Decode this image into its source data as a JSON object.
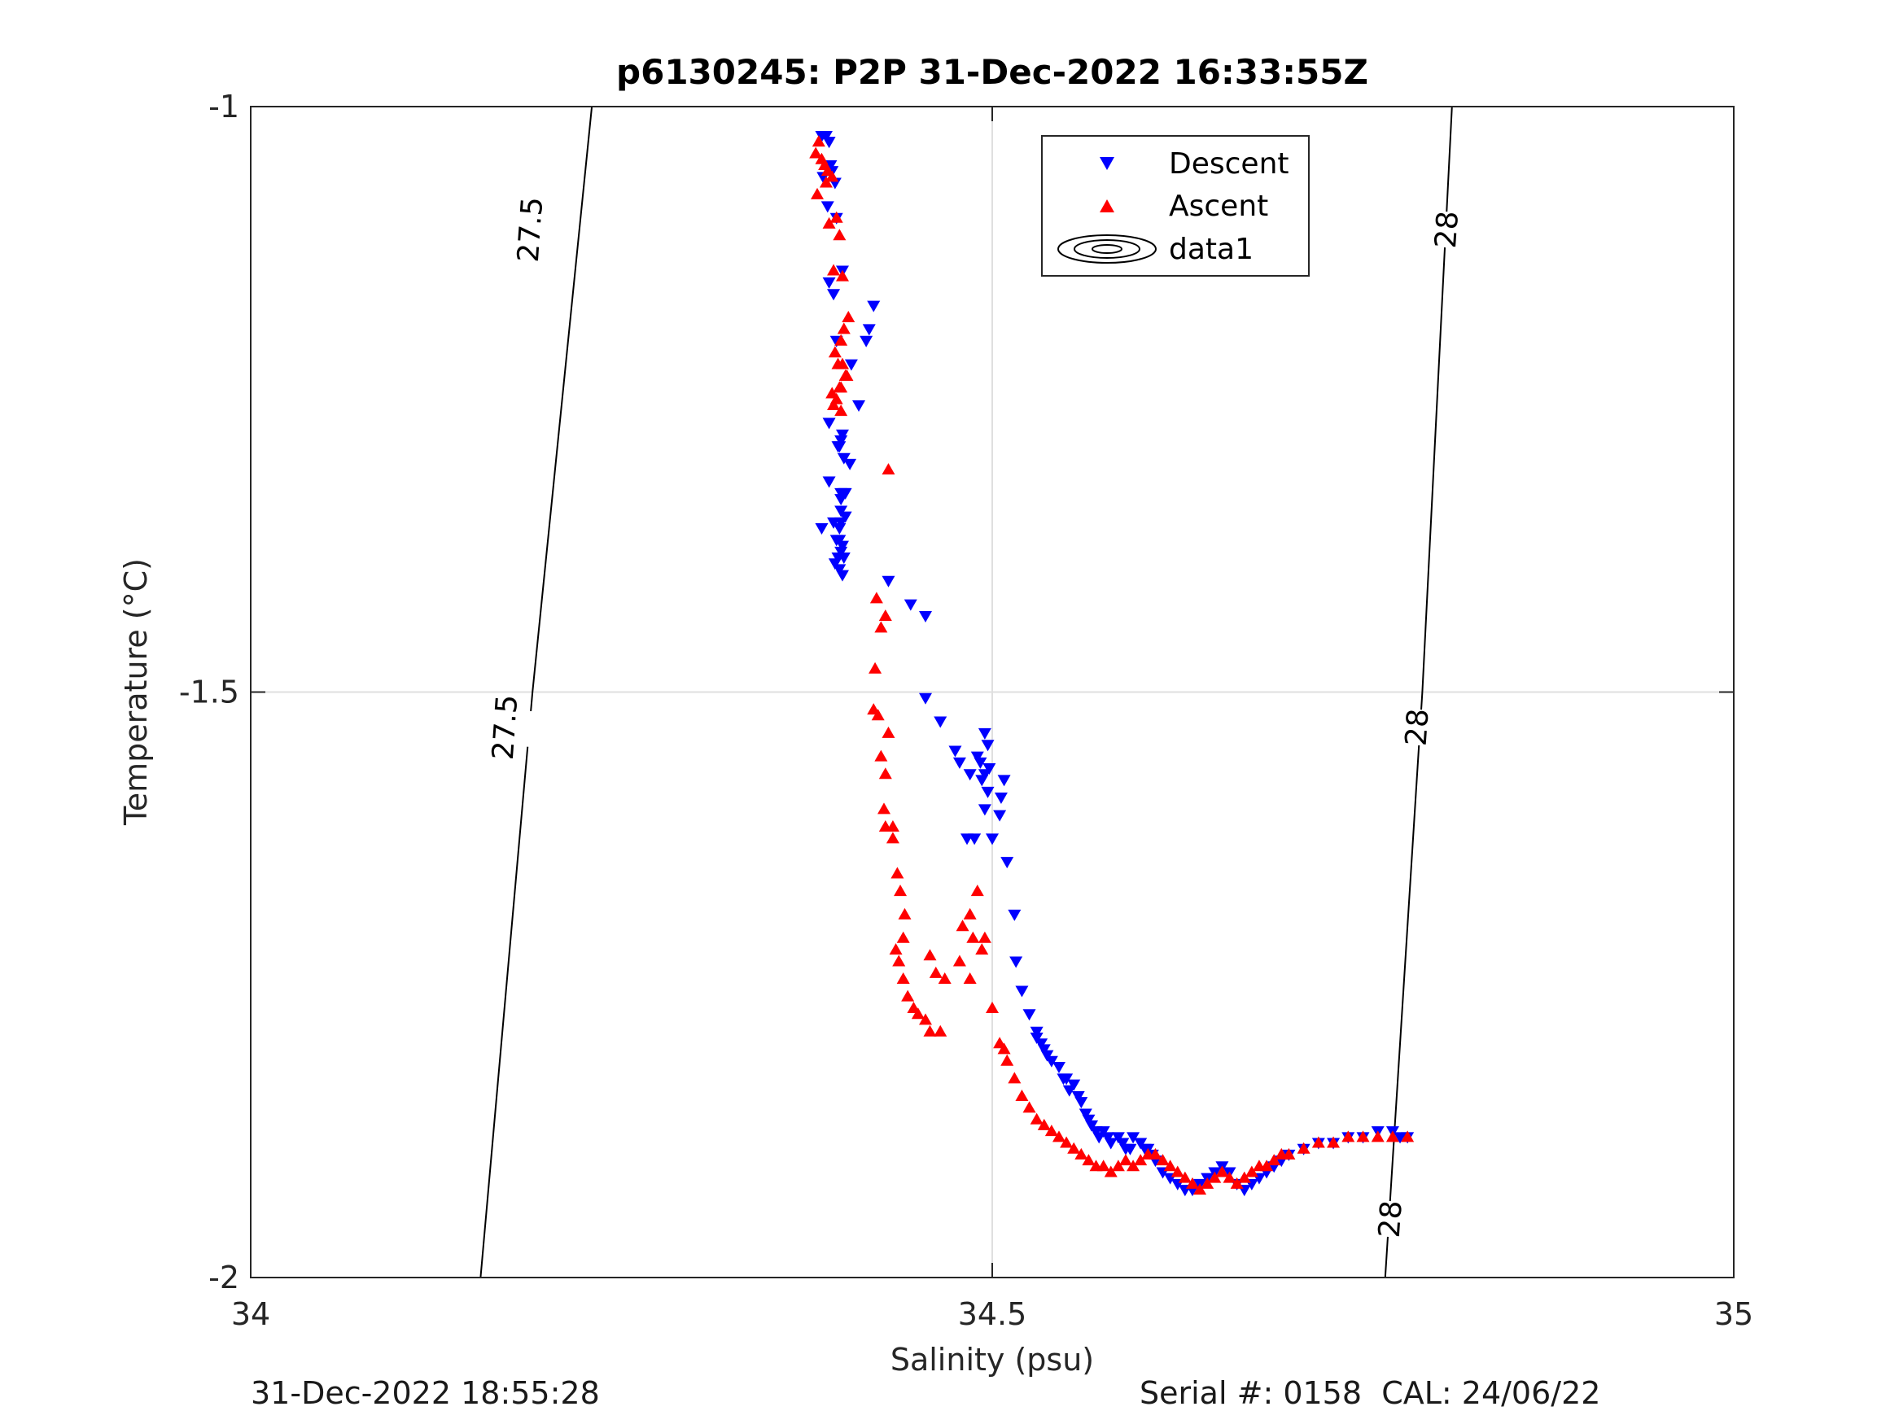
{
  "chart_data": {
    "type": "scatter",
    "title": "p6130245: P2P 31-Dec-2022 16:33:55Z",
    "xlabel": "Salinity (psu)",
    "ylabel": "Temperature (°C)",
    "xlim": [
      34,
      35
    ],
    "ylim": [
      -2,
      -1
    ],
    "x_ticks": [
      "34",
      "34.5",
      "35"
    ],
    "y_ticks": [
      "-1",
      "-1.5",
      "-2"
    ],
    "grid": true,
    "legend_position": "top-center",
    "legend": [
      "Descent",
      "Ascent",
      "data1"
    ],
    "isopycnals": [
      {
        "label": "27.5",
        "points": [
          [
            34.155,
            -2.0
          ],
          [
            34.19,
            -1.5
          ],
          [
            34.19,
            -1.5
          ],
          [
            34.23,
            -1.0
          ]
        ]
      },
      {
        "label": "28",
        "points": [
          [
            34.765,
            -2.0
          ],
          [
            34.79,
            -1.5
          ],
          [
            34.79,
            -1.5
          ],
          [
            34.81,
            -1.0
          ]
        ]
      }
    ],
    "isopycnal_label_points": [
      {
        "label": "27.5",
        "x": 34.188,
        "y": -1.105
      },
      {
        "label": "27.5",
        "x": 34.171,
        "y": -1.53
      },
      {
        "label": "28",
        "x": 34.806,
        "y": -1.105
      },
      {
        "label": "28",
        "x": 34.786,
        "y": -1.53
      },
      {
        "label": "28",
        "x": 34.768,
        "y": -1.95
      }
    ],
    "series": [
      {
        "name": "Descent",
        "marker": "triangle-down",
        "color": "#0000ff",
        "x": [
          34.385,
          34.388,
          34.39,
          34.391,
          34.386,
          34.392,
          34.394,
          34.389,
          34.395,
          34.39,
          34.393,
          34.399,
          34.42,
          34.417,
          34.415,
          34.395,
          34.405,
          34.41,
          34.39,
          34.404,
          34.398,
          34.4,
          34.385,
          34.393,
          34.398,
          34.401,
          34.397,
          34.397,
          34.399,
          34.398,
          34.396,
          34.4,
          34.397,
          34.399,
          34.39,
          34.395,
          34.398,
          34.396,
          34.398,
          34.398,
          34.4,
          34.394,
          34.397,
          34.399,
          34.401,
          34.43,
          34.445,
          34.455,
          34.455,
          34.465,
          34.475,
          34.478,
          34.485,
          34.493,
          34.49,
          34.495,
          34.497,
          34.495,
          34.492,
          34.497,
          34.498,
          34.495,
          34.488,
          34.483,
          34.5,
          34.505,
          34.506,
          34.508,
          34.51,
          34.515,
          34.516,
          34.52,
          34.525,
          34.53,
          34.53,
          34.533,
          34.535,
          34.537,
          34.54,
          34.545,
          34.548,
          34.55,
          34.552,
          34.555,
          34.558,
          34.56,
          34.563,
          34.565,
          34.567,
          34.57,
          34.572,
          34.575,
          34.578,
          34.58,
          34.585,
          34.588,
          34.59,
          34.593,
          34.595,
          34.6,
          34.603,
          34.605,
          34.608,
          34.61,
          34.615,
          34.62,
          34.625,
          34.63,
          34.635,
          34.64,
          34.645,
          34.65,
          34.655,
          34.66,
          34.665,
          34.67,
          34.675,
          34.68,
          34.685,
          34.69,
          34.695,
          34.7,
          34.71,
          34.72,
          34.73,
          34.74,
          34.75,
          34.76,
          34.77,
          34.775,
          34.78
        ],
        "y": [
          -1.025,
          -1.025,
          -1.03,
          -1.05,
          -1.06,
          -1.055,
          -1.065,
          -1.085,
          -1.095,
          -1.15,
          -1.16,
          -1.14,
          -1.17,
          -1.19,
          -1.2,
          -1.2,
          -1.22,
          -1.255,
          -1.32,
          -1.305,
          -1.285,
          -1.33,
          -1.36,
          -1.355,
          -1.345,
          -1.35,
          -1.36,
          -1.37,
          -1.375,
          -1.38,
          -1.385,
          -1.3,
          -1.29,
          -1.28,
          -1.27,
          -1.37,
          -1.335,
          -1.29,
          -1.33,
          -1.355,
          -1.385,
          -1.39,
          -1.395,
          -1.4,
          -1.33,
          -1.405,
          -1.425,
          -1.435,
          -1.505,
          -1.525,
          -1.55,
          -1.56,
          -1.57,
          -1.575,
          -1.555,
          -1.57,
          -1.585,
          -1.535,
          -1.56,
          -1.545,
          -1.565,
          -1.6,
          -1.625,
          -1.625,
          -1.625,
          -1.605,
          -1.59,
          -1.575,
          -1.645,
          -1.69,
          -1.73,
          -1.755,
          -1.775,
          -1.79,
          -1.795,
          -1.8,
          -1.805,
          -1.81,
          -1.815,
          -1.82,
          -1.83,
          -1.83,
          -1.84,
          -1.835,
          -1.845,
          -1.85,
          -1.86,
          -1.865,
          -1.87,
          -1.875,
          -1.88,
          -1.875,
          -1.88,
          -1.885,
          -1.88,
          -1.885,
          -1.89,
          -1.89,
          -1.88,
          -1.885,
          -1.89,
          -1.89,
          -1.895,
          -1.9,
          -1.91,
          -1.915,
          -1.92,
          -1.925,
          -1.925,
          -1.92,
          -1.915,
          -1.91,
          -1.905,
          -1.91,
          -1.92,
          -1.925,
          -1.92,
          -1.915,
          -1.91,
          -1.905,
          -1.9,
          -1.895,
          -1.89,
          -1.885,
          -1.885,
          -1.88,
          -1.88,
          -1.875,
          -1.875,
          -1.88,
          -1.88
        ]
      },
      {
        "name": "Ascent",
        "marker": "triangle-up",
        "color": "#ff0000",
        "x": [
          34.383,
          34.381,
          34.385,
          34.387,
          34.389,
          34.392,
          34.388,
          34.382,
          34.39,
          34.395,
          34.397,
          34.393,
          34.399,
          34.403,
          34.4,
          34.398,
          34.394,
          34.396,
          34.401,
          34.392,
          34.397,
          34.399,
          34.402,
          34.398,
          34.395,
          34.393,
          34.398,
          34.43,
          34.428,
          34.422,
          34.425,
          34.421,
          34.42,
          34.423,
          34.43,
          34.425,
          34.428,
          34.427,
          34.433,
          34.428,
          34.433,
          34.436,
          34.438,
          34.441,
          34.44,
          34.435,
          34.437,
          34.44,
          34.443,
          34.447,
          34.45,
          34.455,
          34.458,
          34.465,
          34.458,
          34.462,
          34.468,
          34.478,
          34.48,
          34.485,
          34.49,
          34.487,
          34.485,
          34.493,
          34.495,
          34.5,
          34.505,
          34.508,
          34.51,
          34.515,
          34.52,
          34.525,
          34.53,
          34.535,
          34.54,
          34.545,
          34.55,
          34.555,
          34.56,
          34.565,
          34.57,
          34.575,
          34.58,
          34.585,
          34.59,
          34.595,
          34.6,
          34.605,
          34.61,
          34.615,
          34.62,
          34.625,
          34.63,
          34.635,
          34.64,
          34.645,
          34.65,
          34.655,
          34.66,
          34.665,
          34.67,
          34.675,
          34.68,
          34.685,
          34.69,
          34.695,
          34.7,
          34.71,
          34.72,
          34.73,
          34.74,
          34.75,
          34.76,
          34.77,
          34.78
        ],
        "y": [
          -1.03,
          -1.04,
          -1.045,
          -1.05,
          -1.055,
          -1.06,
          -1.065,
          -1.075,
          -1.1,
          -1.095,
          -1.11,
          -1.14,
          -1.145,
          -1.18,
          -1.19,
          -1.2,
          -1.21,
          -1.22,
          -1.23,
          -1.245,
          -1.24,
          -1.22,
          -1.23,
          -1.24,
          -1.25,
          -1.255,
          -1.26,
          -1.31,
          -1.435,
          -1.42,
          -1.445,
          -1.48,
          -1.515,
          -1.52,
          -1.535,
          -1.555,
          -1.57,
          -1.6,
          -1.615,
          -1.615,
          -1.625,
          -1.655,
          -1.67,
          -1.69,
          -1.71,
          -1.72,
          -1.73,
          -1.745,
          -1.76,
          -1.77,
          -1.775,
          -1.78,
          -1.79,
          -1.79,
          -1.725,
          -1.74,
          -1.745,
          -1.73,
          -1.7,
          -1.69,
          -1.67,
          -1.71,
          -1.745,
          -1.72,
          -1.71,
          -1.77,
          -1.8,
          -1.805,
          -1.815,
          -1.83,
          -1.845,
          -1.855,
          -1.865,
          -1.87,
          -1.875,
          -1.88,
          -1.885,
          -1.89,
          -1.895,
          -1.9,
          -1.905,
          -1.905,
          -1.91,
          -1.905,
          -1.9,
          -1.905,
          -1.9,
          -1.895,
          -1.895,
          -1.9,
          -1.905,
          -1.91,
          -1.915,
          -1.92,
          -1.925,
          -1.92,
          -1.915,
          -1.91,
          -1.915,
          -1.92,
          -1.915,
          -1.91,
          -1.905,
          -1.905,
          -1.9,
          -1.895,
          -1.895,
          -1.89,
          -1.885,
          -1.885,
          -1.88,
          -1.88,
          -1.88,
          -1.88,
          -1.88
        ]
      }
    ]
  },
  "footer": {
    "timestamp": "31-Dec-2022 18:55:28",
    "serial": "Serial #: 0158  CAL: 24/06/22"
  }
}
